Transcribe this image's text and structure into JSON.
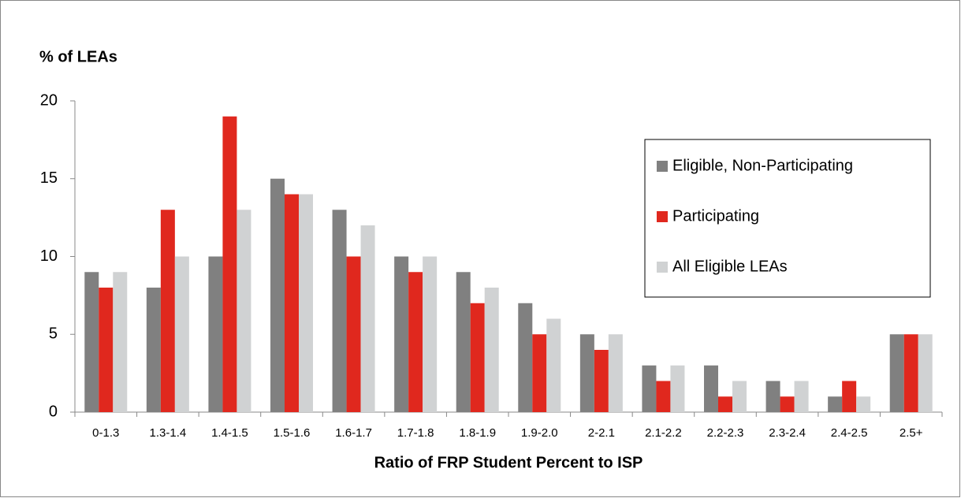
{
  "chart_data": {
    "type": "bar",
    "y_label": "% of LEAs",
    "x_label": "Ratio of FRP Student Percent to ISP",
    "categories": [
      "0-1.3",
      "1.3-1.4",
      "1.4-1.5",
      "1.5-1.6",
      "1.6-1.7",
      "1.7-1.8",
      "1.8-1.9",
      "1.9-2.0",
      "2-2.1",
      "2.1-2.2",
      "2.2-2.3",
      "2.3-2.4",
      "2.4-2.5",
      "2.5+"
    ],
    "series": [
      {
        "name": "Eligible, Non-Participating",
        "color": "#808080",
        "values": [
          9,
          8,
          10,
          15,
          13,
          10,
          9,
          7,
          5,
          3,
          3,
          2,
          1,
          5
        ]
      },
      {
        "name": "Participating",
        "color": "#e0281e",
        "values": [
          8,
          13,
          19,
          14,
          10,
          9,
          7,
          5,
          4,
          2,
          1,
          1,
          2,
          5
        ]
      },
      {
        "name": "All Eligible LEAs",
        "color": "#d0d2d3",
        "values": [
          9,
          10,
          13,
          14,
          12,
          10,
          8,
          6,
          5,
          3,
          2,
          2,
          1,
          5
        ]
      }
    ],
    "ylim": [
      0,
      20
    ],
    "yticks": [
      0,
      5,
      10,
      15,
      20
    ],
    "grid": false,
    "legend": "right"
  }
}
